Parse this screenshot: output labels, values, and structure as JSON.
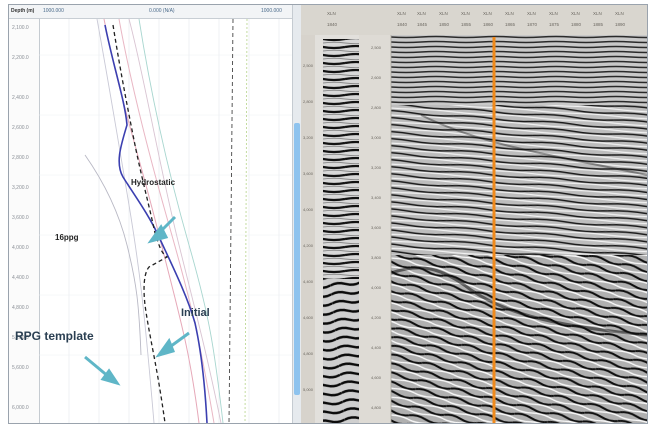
{
  "log_panel": {
    "header": {
      "depth_label": "Depth (m)",
      "curve_labels": [
        "1000.000",
        "0.000 (N/A)",
        "1000.000"
      ]
    },
    "depth_ticks": [
      "2,100.0",
      "2,200.0",
      "2,400.0",
      "2,600.0",
      "2,800.0",
      "3,200.0",
      "3,600.0",
      "4,000.0",
      "4,400.0",
      "4,800.0",
      "5,200.0",
      "5,600.0",
      "6,000.0"
    ],
    "annotations": {
      "hydrostatic": "Hydrostatic",
      "ppg16": "16ppg",
      "initial": "Initial",
      "rpg_template": "RPG template"
    }
  },
  "seismic_panel": {
    "small_strip_header": [
      "XLN",
      "1840"
    ],
    "main_header_top": [
      "XLN",
      "XLN",
      "XLN",
      "XLN",
      "XLN",
      "XLN",
      "XLN",
      "XLN",
      "XLN",
      "XLN",
      "XLN"
    ],
    "main_header_bottom": [
      "1840",
      "1845",
      "1850",
      "1855",
      "1860",
      "1865",
      "1870",
      "1875",
      "1880",
      "1885",
      "1890"
    ],
    "time_ticks": [
      "2,500",
      "2,600",
      "2,800",
      "3,000",
      "3,200",
      "3,400",
      "3,600",
      "3,800",
      "4,000",
      "4,200",
      "4,400",
      "4,600",
      "4,800",
      "5,000"
    ]
  },
  "colors": {
    "hydrostatic_line": "#3b3fb0",
    "template_line": "#222222",
    "well_marker": "#f08a1c",
    "annotation_arrow": "#5fb6c7"
  }
}
